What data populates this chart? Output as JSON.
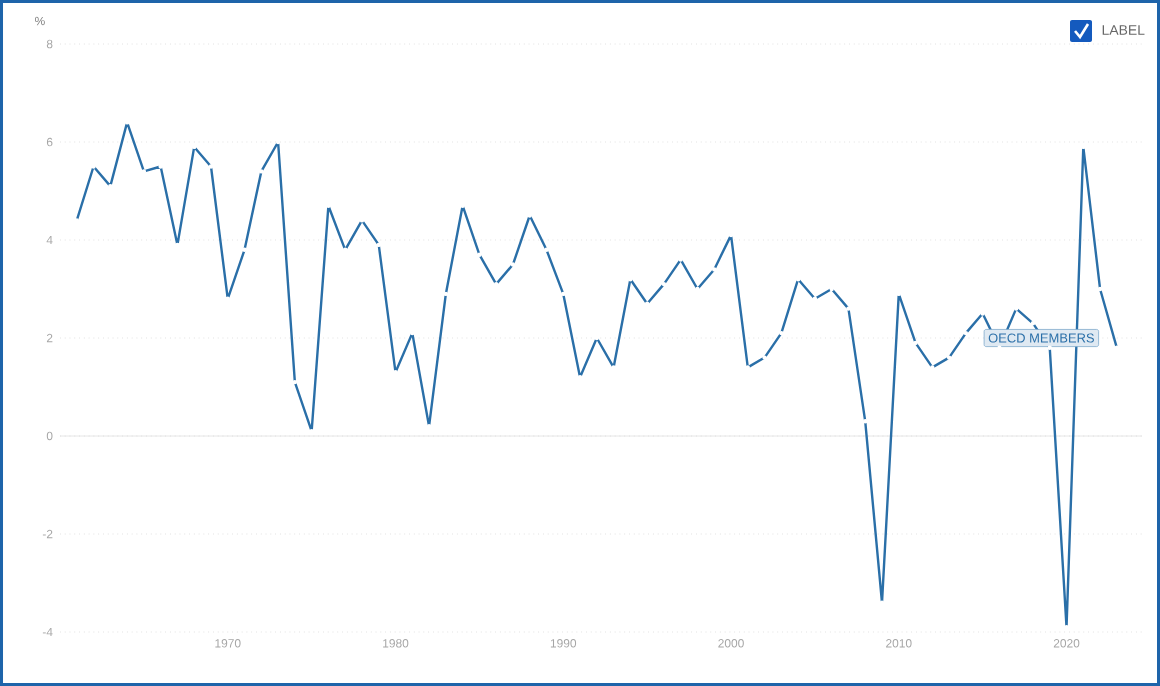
{
  "chart_data": {
    "type": "line",
    "ylabel": "%",
    "x": [
      1961,
      1962,
      1963,
      1964,
      1965,
      1966,
      1967,
      1968,
      1969,
      1970,
      1971,
      1972,
      1973,
      1974,
      1975,
      1976,
      1977,
      1978,
      1979,
      1980,
      1981,
      1982,
      1983,
      1984,
      1985,
      1986,
      1987,
      1988,
      1989,
      1990,
      1991,
      1992,
      1993,
      1994,
      1995,
      1996,
      1997,
      1998,
      1999,
      2000,
      2001,
      2002,
      2003,
      2004,
      2005,
      2006,
      2007,
      2008,
      2009,
      2010,
      2011,
      2012,
      2013,
      2014,
      2015,
      2016,
      2017,
      2018,
      2019,
      2020,
      2021,
      2022,
      2023
    ],
    "series": [
      {
        "name": "OECD MEMBERS",
        "color": "#2a6fa8",
        "values": [
          4.4,
          5.5,
          5.1,
          6.4,
          5.4,
          5.5,
          3.9,
          5.9,
          5.5,
          2.8,
          3.8,
          5.4,
          6.0,
          1.1,
          0.1,
          4.7,
          3.8,
          4.4,
          3.9,
          1.3,
          2.1,
          0.2,
          2.9,
          4.7,
          3.7,
          3.1,
          3.5,
          4.5,
          3.8,
          2.9,
          1.2,
          2.0,
          1.4,
          3.2,
          2.7,
          3.1,
          3.6,
          3.0,
          3.4,
          4.1,
          1.4,
          1.6,
          2.1,
          3.2,
          2.8,
          3.0,
          2.6,
          0.3,
          -3.4,
          2.9,
          1.9,
          1.4,
          1.6,
          2.1,
          2.5,
          1.8,
          2.6,
          2.3,
          1.8,
          -3.9,
          5.9,
          3.0,
          1.8
        ]
      }
    ],
    "xlim": [
      1960,
      2024.5
    ],
    "ylim": [
      -4,
      8
    ],
    "xticks": [
      1970,
      1980,
      1990,
      2000,
      2010,
      2020
    ],
    "yticks": [
      -4,
      -2,
      0,
      2,
      4,
      6,
      8
    ],
    "grid": "y",
    "marker": "circle",
    "line_style": "solid",
    "annotations": [
      "LABEL"
    ]
  }
}
